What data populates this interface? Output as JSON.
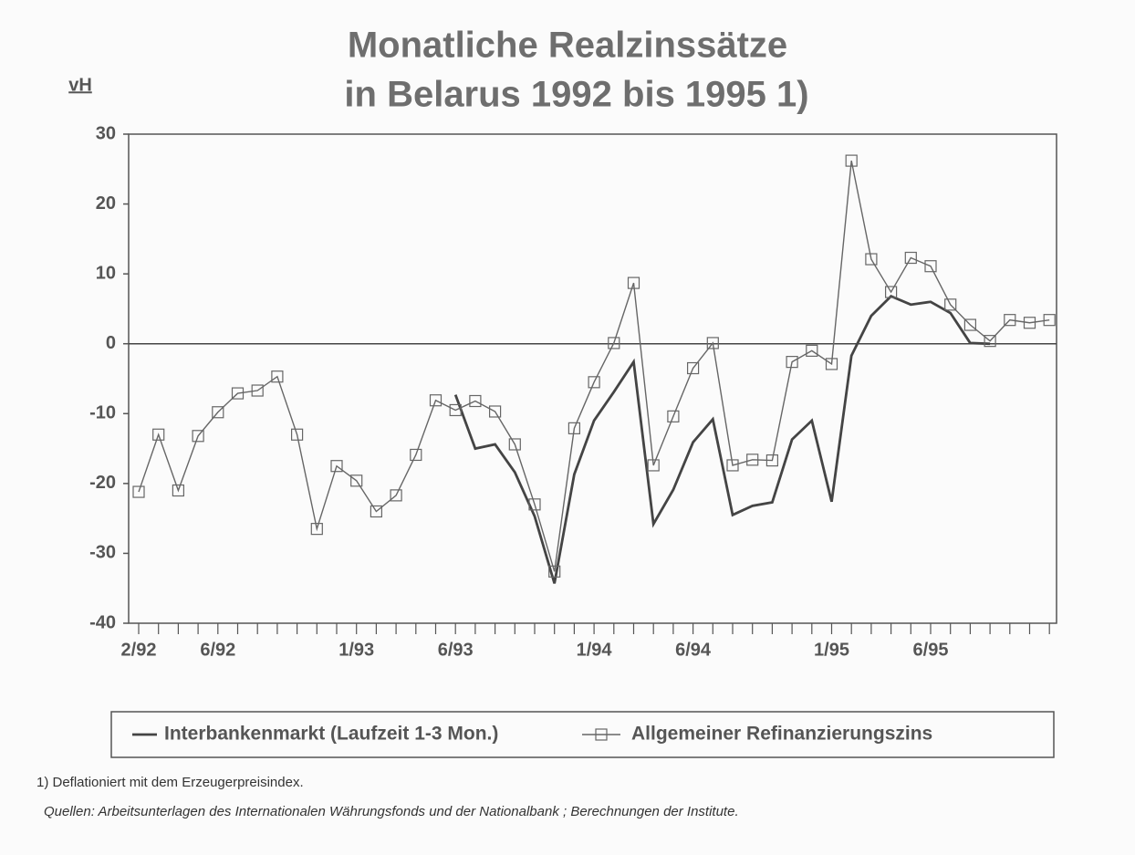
{
  "chart_data": {
    "type": "line",
    "title": [
      "Monatliche Realzinssätze",
      "in Belarus 1992 bis 1995  1)"
    ],
    "y_label": "vH",
    "categories": [
      "2/92",
      null,
      null,
      null,
      "6/92",
      null,
      null,
      null,
      null,
      null,
      null,
      "1/93",
      null,
      null,
      null,
      null,
      "6/93",
      null,
      null,
      null,
      null,
      null,
      null,
      "1/94",
      null,
      null,
      null,
      null,
      "6/94",
      null,
      null,
      null,
      null,
      null,
      null,
      "1/95",
      null,
      null,
      null,
      null,
      "6/95",
      null,
      null,
      null,
      null,
      null,
      null
    ],
    "series": [
      {
        "name": "Interbankenmarkt (Laufzeit 1-3 Mon.)",
        "color": "#444444",
        "marker": "none",
        "values": [
          null,
          null,
          null,
          null,
          null,
          null,
          null,
          null,
          null,
          null,
          null,
          null,
          null,
          null,
          null,
          null,
          -7.3,
          -15,
          -14.4,
          -18.4,
          -24.7,
          -34.3,
          -18.7,
          -11,
          -6.9,
          -2.6,
          -25.8,
          -20.9,
          -14.1,
          -10.8,
          -24.5,
          -23.2,
          -22.7,
          -13.7,
          -11,
          -22.6,
          -1.7,
          4,
          6.8,
          5.6,
          6,
          4.4,
          0.1,
          0,
          null,
          null,
          null
        ]
      },
      {
        "name": "Allgemeiner Refinanzierungszins",
        "color": "#666666",
        "marker": "square",
        "values": [
          -21.2,
          -13,
          -21,
          -13.2,
          -9.8,
          -7.1,
          -6.7,
          -4.7,
          -13,
          -26.5,
          -17.5,
          -19.6,
          -24,
          -21.7,
          -15.9,
          -8.1,
          -9.5,
          -8.2,
          -9.7,
          -14.4,
          -23,
          -32.6,
          -12.1,
          -5.5,
          0.1,
          8.7,
          -17.4,
          -10.4,
          -3.5,
          0.1,
          -17.4,
          -16.6,
          -16.7,
          -2.6,
          -1,
          -2.9,
          26.2,
          12.1,
          7.4,
          12.3,
          11.1,
          5.6,
          2.7,
          0.4,
          3.4,
          3,
          3.4
        ]
      }
    ],
    "ylim": [
      -40,
      30
    ],
    "yticks": [
      -40,
      -30,
      -20,
      -10,
      0,
      10,
      20,
      30
    ],
    "annotations": [
      "1) Deflationiert mit dem Erzeugerpreisindex.",
      "Quellen: Arbeitsunterlagen des Internationalen Währungsfonds und der Nationalbank ; Berechnungen der Institute."
    ]
  }
}
